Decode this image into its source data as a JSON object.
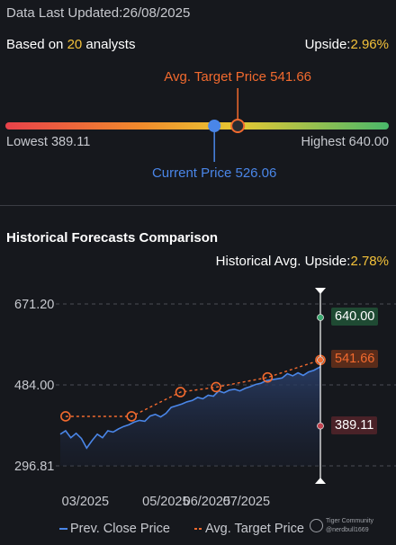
{
  "header": {
    "updated_label": "Data Last Updated:",
    "updated_date": "26/08/2025",
    "based_on_prefix": "Based on",
    "analyst_count": "20",
    "based_on_suffix": "analysts",
    "upside_label": "Upside:",
    "upside_value": "2.96%"
  },
  "target_range": {
    "lowest_label": "Lowest",
    "lowest": 389.11,
    "lowest_text": "389.11",
    "highest_label": "Highest",
    "highest": 640.0,
    "highest_text": "640.00",
    "avg_label": "Avg. Target Price",
    "avg_target": 541.66,
    "avg_text": "541.66",
    "current_label": "Current Price",
    "current": 526.06,
    "current_text": "526.06"
  },
  "historical": {
    "title": "Historical Forecasts Comparison",
    "upside_label": "Historical Avg. Upside:",
    "upside_value": "2.78%"
  },
  "chart_data": {
    "type": "line",
    "y_ticks": [
      "671.20",
      "484.00",
      "296.81"
    ],
    "ylim": [
      296.81,
      671.2
    ],
    "x_ticks": [
      "03/2025",
      "05/2025",
      "06/2025",
      "07/2025"
    ],
    "x_tick_dates": [
      "2025-03-01",
      "2025-05-01",
      "2025-06-01",
      "2025-07-01"
    ],
    "x_range": [
      "2025-02-10",
      "2025-08-26"
    ],
    "series": [
      {
        "name": "Prev. Close Price",
        "x": [
          "2025-02-10",
          "2025-02-14",
          "2025-02-18",
          "2025-02-22",
          "2025-02-26",
          "2025-03-02",
          "2025-03-06",
          "2025-03-10",
          "2025-03-14",
          "2025-03-18",
          "2025-03-22",
          "2025-03-26",
          "2025-03-30",
          "2025-04-03",
          "2025-04-07",
          "2025-04-11",
          "2025-04-15",
          "2025-04-19",
          "2025-04-23",
          "2025-04-27",
          "2025-05-01",
          "2025-05-05",
          "2025-05-09",
          "2025-05-13",
          "2025-05-17",
          "2025-05-21",
          "2025-05-25",
          "2025-05-29",
          "2025-06-02",
          "2025-06-06",
          "2025-06-10",
          "2025-06-14",
          "2025-06-18",
          "2025-06-22",
          "2025-06-26",
          "2025-06-30",
          "2025-07-04",
          "2025-07-08",
          "2025-07-12",
          "2025-07-16",
          "2025-07-20",
          "2025-07-24",
          "2025-07-28",
          "2025-08-01",
          "2025-08-05",
          "2025-08-09",
          "2025-08-13",
          "2025-08-17",
          "2025-08-21",
          "2025-08-26"
        ],
        "values": [
          370,
          378,
          362,
          372,
          360,
          338,
          355,
          370,
          362,
          378,
          375,
          382,
          388,
          392,
          398,
          402,
          400,
          412,
          416,
          410,
          418,
          432,
          436,
          440,
          445,
          448,
          455,
          452,
          460,
          458,
          470,
          466,
          472,
          474,
          470,
          476,
          480,
          485,
          488,
          494,
          496,
          498,
          500,
          510,
          505,
          512,
          506,
          514,
          518,
          526
        ],
        "color": "#4a86e8"
      },
      {
        "name": "Avg. Target Price",
        "x": [
          "2025-02-14",
          "2025-04-05",
          "2025-05-12",
          "2025-06-08",
          "2025-07-17",
          "2025-08-26"
        ],
        "values": [
          411.29,
          411.29,
          467.42,
          478.89,
          501.36,
          541.66
        ],
        "color": "#f26a2e"
      }
    ],
    "end_markers": {
      "high": 640.0,
      "high_text": "640.00",
      "high_color": "#3ba86f",
      "avg": 541.66,
      "avg_text": "541.66",
      "avg_color": "#f26a2e",
      "low": 389.11,
      "low_text": "389.11",
      "low_color": "#c0424f"
    },
    "grid": true,
    "legend": "bottom"
  },
  "watermark": {
    "name": "Tiger Community",
    "user": "@nerdbull1669"
  },
  "colors": {
    "background": "#16181d",
    "highlight": "#f4c23a",
    "current": "#4a86e8",
    "target": "#f26a2e",
    "muted": "#c7c9cf"
  }
}
